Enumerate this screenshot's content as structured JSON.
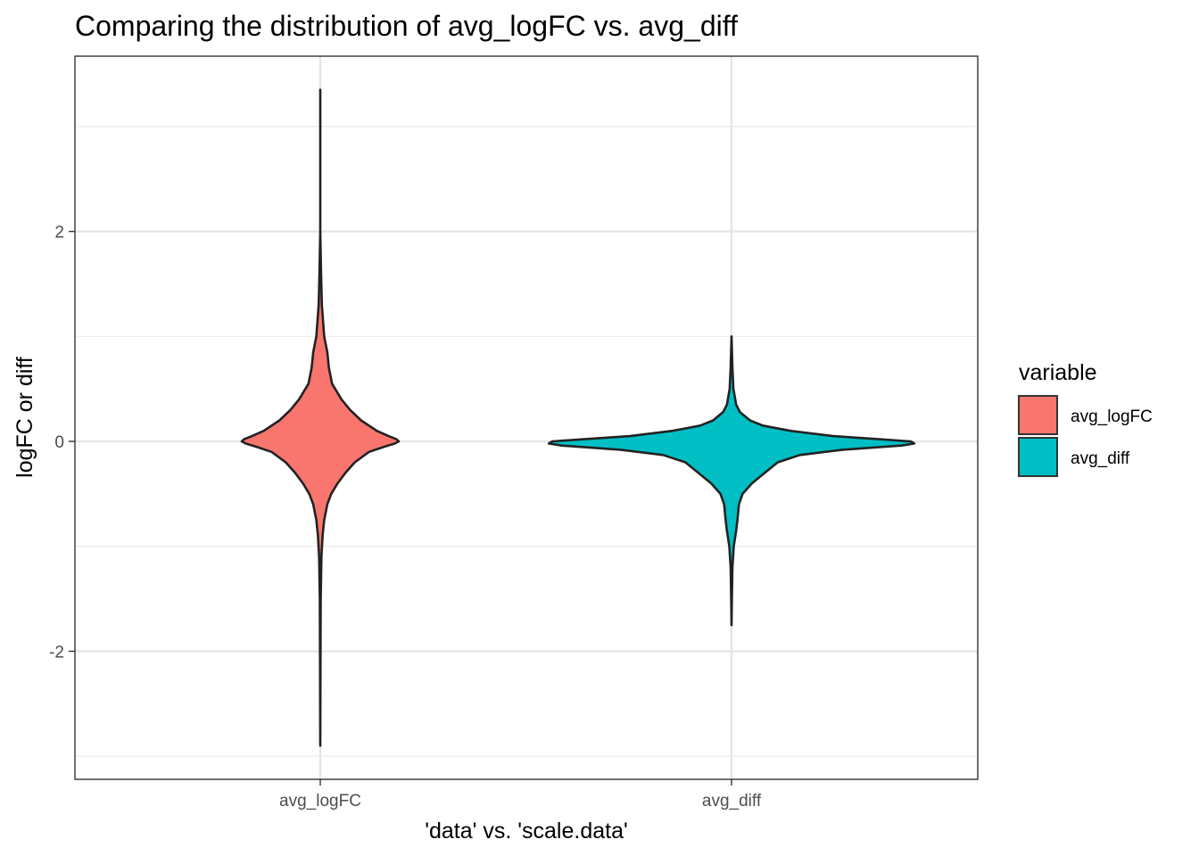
{
  "chart_data": {
    "type": "violin",
    "title": "Comparing the distribution of avg_logFC vs. avg_diff",
    "xlabel": "'data' vs. 'scale.data'",
    "ylabel": "logFC or diff",
    "categories": [
      "avg_logFC",
      "avg_diff"
    ],
    "ylim": [
      -3.0,
      3.5
    ],
    "yticks": [
      -2,
      0,
      2
    ],
    "ytick_labels": [
      "-2",
      "0",
      "2"
    ],
    "grid": true,
    "legend": {
      "title": "variable",
      "position": "right",
      "entries": [
        {
          "label": "avg_logFC",
          "color": "#F8766D"
        },
        {
          "label": "avg_diff",
          "color": "#00BFC4"
        }
      ]
    },
    "series": [
      {
        "name": "avg_logFC",
        "color": "#F8766D",
        "min": -2.9,
        "max": 3.35,
        "profile": [
          [
            3.35,
            0.0
          ],
          [
            2.0,
            0.0
          ],
          [
            1.6,
            0.01
          ],
          [
            1.3,
            0.02
          ],
          [
            1.0,
            0.05
          ],
          [
            0.85,
            0.09
          ],
          [
            0.7,
            0.11
          ],
          [
            0.55,
            0.15
          ],
          [
            0.4,
            0.27
          ],
          [
            0.3,
            0.38
          ],
          [
            0.2,
            0.52
          ],
          [
            0.1,
            0.72
          ],
          [
            0.05,
            0.87
          ],
          [
            0.02,
            0.97
          ],
          [
            0.0,
            1.0
          ],
          [
            -0.02,
            0.95
          ],
          [
            -0.05,
            0.82
          ],
          [
            -0.1,
            0.62
          ],
          [
            -0.2,
            0.44
          ],
          [
            -0.3,
            0.32
          ],
          [
            -0.4,
            0.22
          ],
          [
            -0.5,
            0.14
          ],
          [
            -0.6,
            0.09
          ],
          [
            -0.75,
            0.05
          ],
          [
            -0.9,
            0.03
          ],
          [
            -1.1,
            0.015
          ],
          [
            -1.5,
            0.006
          ],
          [
            -2.0,
            0.003
          ],
          [
            -2.9,
            0.0
          ]
        ]
      },
      {
        "name": "avg_diff",
        "color": "#00BFC4",
        "min": -1.75,
        "max": 1.0,
        "profile": [
          [
            1.0,
            0.0
          ],
          [
            0.7,
            0.005
          ],
          [
            0.5,
            0.01
          ],
          [
            0.35,
            0.025
          ],
          [
            0.28,
            0.045
          ],
          [
            0.2,
            0.1
          ],
          [
            0.15,
            0.17
          ],
          [
            0.1,
            0.32
          ],
          [
            0.05,
            0.55
          ],
          [
            0.02,
            0.8
          ],
          [
            0.0,
            0.97
          ],
          [
            -0.02,
            0.99
          ],
          [
            -0.04,
            0.92
          ],
          [
            -0.08,
            0.6
          ],
          [
            -0.13,
            0.37
          ],
          [
            -0.2,
            0.25
          ],
          [
            -0.3,
            0.18
          ],
          [
            -0.4,
            0.11
          ],
          [
            -0.5,
            0.06
          ],
          [
            -0.6,
            0.04
          ],
          [
            -0.75,
            0.032
          ],
          [
            -0.85,
            0.025
          ],
          [
            -1.0,
            0.012
          ],
          [
            -1.2,
            0.005
          ],
          [
            -1.5,
            0.002
          ],
          [
            -1.75,
            0.0
          ]
        ]
      }
    ]
  }
}
